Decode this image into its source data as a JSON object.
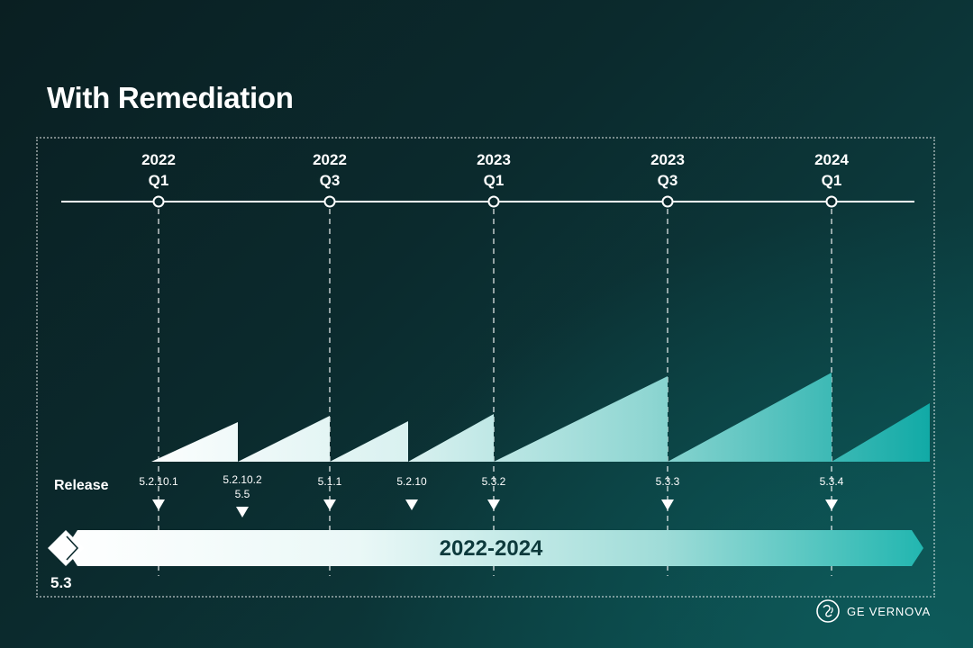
{
  "title": "With Remediation",
  "periods": [
    {
      "year": "2022",
      "quarter": "Q1"
    },
    {
      "year": "2022",
      "quarter": "Q3"
    },
    {
      "year": "2023",
      "quarter": "Q1"
    },
    {
      "year": "2023",
      "quarter": "Q3"
    },
    {
      "year": "2024",
      "quarter": "Q1"
    }
  ],
  "release_label": "Release",
  "releases": [
    {
      "lines": [
        "5.2.10.1"
      ]
    },
    {
      "lines": [
        "5.2.10.2",
        "5.5"
      ]
    },
    {
      "lines": [
        "5.1.1"
      ]
    },
    {
      "lines": [
        "5.2.10"
      ]
    },
    {
      "lines": [
        "5.3.2"
      ]
    },
    {
      "lines": [
        "5.3.3"
      ]
    },
    {
      "lines": [
        "5.3.4"
      ]
    }
  ],
  "band": {
    "label": "2022-2024"
  },
  "start_version": "5.3",
  "brand": {
    "name": "GE VERNOVA",
    "logo_icon": "ge-monogram-icon"
  },
  "colors": {
    "accent": "#16b3ad",
    "light": "#ffffff",
    "line": "#ffffff"
  }
}
